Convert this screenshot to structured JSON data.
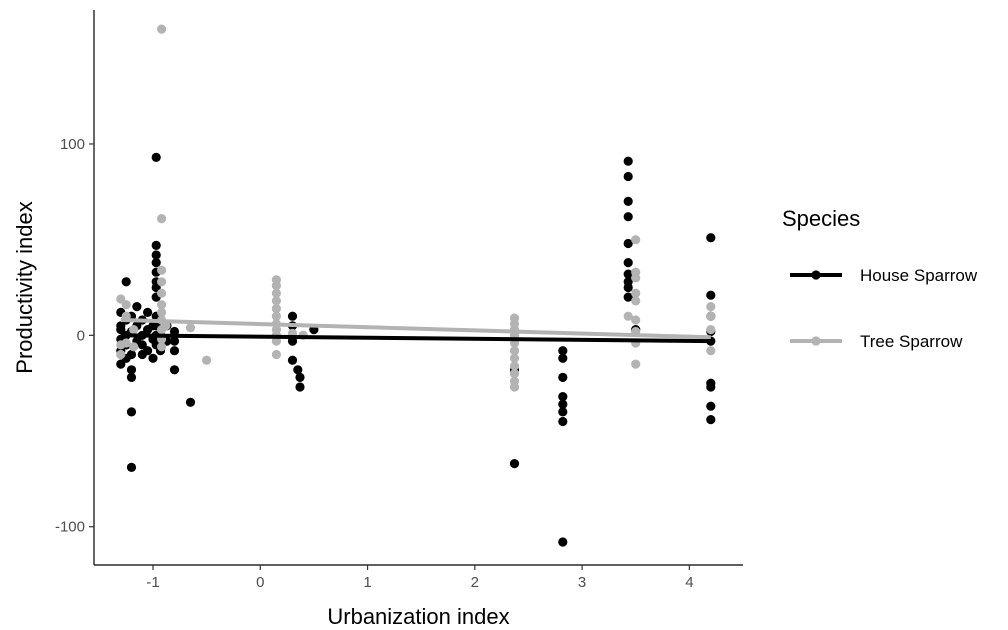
{
  "chart_data": {
    "type": "scatter",
    "title": "",
    "xlabel": "Urbanization index",
    "ylabel": "Productivity index",
    "xlim": [
      -1.55,
      4.5
    ],
    "ylim": [
      -120,
      170
    ],
    "xticks": [
      -1,
      0,
      1,
      2,
      3,
      4
    ],
    "yticks": [
      -100,
      0,
      100
    ],
    "grid": false,
    "legend": {
      "title": "Species",
      "placement": "right"
    },
    "series": [
      {
        "name": "House Sparrow",
        "color": "#000000",
        "trend": [
          [
            -1.3,
            0
          ],
          [
            4.2,
            -3
          ]
        ],
        "points": [
          [
            -1.3,
            12
          ],
          [
            -1.3,
            5
          ],
          [
            -1.3,
            -2
          ],
          [
            -1.3,
            -8
          ],
          [
            -1.3,
            -15
          ],
          [
            -1.3,
            3
          ],
          [
            -1.25,
            28
          ],
          [
            -1.25,
            8
          ],
          [
            -1.25,
            0
          ],
          [
            -1.25,
            -5
          ],
          [
            -1.25,
            -12
          ],
          [
            -1.2,
            10
          ],
          [
            -1.2,
            2
          ],
          [
            -1.2,
            -10
          ],
          [
            -1.2,
            -18
          ],
          [
            -1.2,
            -22
          ],
          [
            -1.2,
            -40
          ],
          [
            -1.2,
            -69
          ],
          [
            -1.15,
            15
          ],
          [
            -1.15,
            5
          ],
          [
            -1.15,
            -3
          ],
          [
            -1.1,
            8
          ],
          [
            -1.1,
            0
          ],
          [
            -1.1,
            -5
          ],
          [
            -1.1,
            -10
          ],
          [
            -1.05,
            12
          ],
          [
            -1.05,
            3
          ],
          [
            -1.05,
            -8
          ],
          [
            -1.0,
            5
          ],
          [
            -1.0,
            -2
          ],
          [
            -1.0,
            -12
          ],
          [
            -0.97,
            93
          ],
          [
            -0.97,
            47
          ],
          [
            -0.97,
            42
          ],
          [
            -0.97,
            38
          ],
          [
            -0.97,
            33
          ],
          [
            -0.97,
            28
          ],
          [
            -0.97,
            25
          ],
          [
            -0.97,
            20
          ],
          [
            -0.97,
            10
          ],
          [
            -0.97,
            5
          ],
          [
            -0.97,
            0
          ],
          [
            -0.97,
            -5
          ],
          [
            -0.93,
            8
          ],
          [
            -0.93,
            0
          ],
          [
            -0.93,
            -8
          ],
          [
            -0.87,
            5
          ],
          [
            -0.87,
            -3
          ],
          [
            -0.8,
            2
          ],
          [
            -0.8,
            -3
          ],
          [
            -0.8,
            -8
          ],
          [
            -0.8,
            -18
          ],
          [
            -0.65,
            -35
          ],
          [
            0.3,
            10
          ],
          [
            0.3,
            5
          ],
          [
            0.3,
            -3
          ],
          [
            0.3,
            -13
          ],
          [
            0.35,
            -18
          ],
          [
            0.37,
            -22
          ],
          [
            0.37,
            -27
          ],
          [
            0.5,
            3
          ],
          [
            2.37,
            -18
          ],
          [
            2.37,
            -67
          ],
          [
            2.82,
            -8
          ],
          [
            2.82,
            -12
          ],
          [
            2.82,
            -22
          ],
          [
            2.82,
            -32
          ],
          [
            2.82,
            -36
          ],
          [
            2.82,
            -40
          ],
          [
            2.82,
            -45
          ],
          [
            2.82,
            -108
          ],
          [
            3.43,
            91
          ],
          [
            3.43,
            83
          ],
          [
            3.43,
            70
          ],
          [
            3.43,
            62
          ],
          [
            3.43,
            48
          ],
          [
            3.43,
            38
          ],
          [
            3.43,
            32
          ],
          [
            3.43,
            28
          ],
          [
            3.43,
            25
          ],
          [
            3.43,
            20
          ],
          [
            3.5,
            3
          ],
          [
            4.2,
            51
          ],
          [
            4.2,
            21
          ],
          [
            4.2,
            10
          ],
          [
            4.2,
            2
          ],
          [
            4.2,
            -3
          ],
          [
            4.2,
            -25
          ],
          [
            4.2,
            -27
          ],
          [
            4.2,
            -37
          ],
          [
            4.2,
            -44
          ]
        ]
      },
      {
        "name": "Tree Sparrow",
        "color": "#b3b3b3",
        "trend": [
          [
            -1.3,
            8
          ],
          [
            4.2,
            -1
          ]
        ],
        "points": [
          [
            -1.3,
            19
          ],
          [
            -1.3,
            -5
          ],
          [
            -1.3,
            -10
          ],
          [
            -1.25,
            16
          ],
          [
            -1.25,
            10
          ],
          [
            -1.25,
            -4
          ],
          [
            -1.18,
            3
          ],
          [
            -1.18,
            -6
          ],
          [
            -0.92,
            160
          ],
          [
            -0.92,
            61
          ],
          [
            -0.92,
            34
          ],
          [
            -0.92,
            28
          ],
          [
            -0.92,
            22
          ],
          [
            -0.92,
            16
          ],
          [
            -0.92,
            12
          ],
          [
            -0.92,
            8
          ],
          [
            -0.92,
            3
          ],
          [
            -0.92,
            -2
          ],
          [
            -0.92,
            -6
          ],
          [
            -0.88,
            5
          ],
          [
            -0.65,
            4
          ],
          [
            -0.5,
            -13
          ],
          [
            0.15,
            29
          ],
          [
            0.15,
            26
          ],
          [
            0.15,
            22
          ],
          [
            0.15,
            18
          ],
          [
            0.15,
            14
          ],
          [
            0.15,
            10
          ],
          [
            0.15,
            6
          ],
          [
            0.15,
            3
          ],
          [
            0.15,
            0
          ],
          [
            0.15,
            -3
          ],
          [
            0.15,
            -10
          ],
          [
            0.3,
            1
          ],
          [
            0.4,
            0
          ],
          [
            2.37,
            9
          ],
          [
            2.37,
            6
          ],
          [
            2.37,
            3
          ],
          [
            2.37,
            0
          ],
          [
            2.37,
            -4
          ],
          [
            2.37,
            -8
          ],
          [
            2.37,
            -12
          ],
          [
            2.37,
            -16
          ],
          [
            2.37,
            -20
          ],
          [
            2.37,
            -24
          ],
          [
            2.37,
            -27
          ],
          [
            3.5,
            50
          ],
          [
            3.5,
            33
          ],
          [
            3.5,
            30
          ],
          [
            3.5,
            22
          ],
          [
            3.5,
            18
          ],
          [
            3.5,
            8
          ],
          [
            3.5,
            2
          ],
          [
            3.5,
            -4
          ],
          [
            3.5,
            -15
          ],
          [
            3.43,
            10
          ],
          [
            4.2,
            15
          ],
          [
            4.2,
            10
          ],
          [
            4.2,
            3
          ],
          [
            4.2,
            -8
          ]
        ]
      }
    ]
  }
}
